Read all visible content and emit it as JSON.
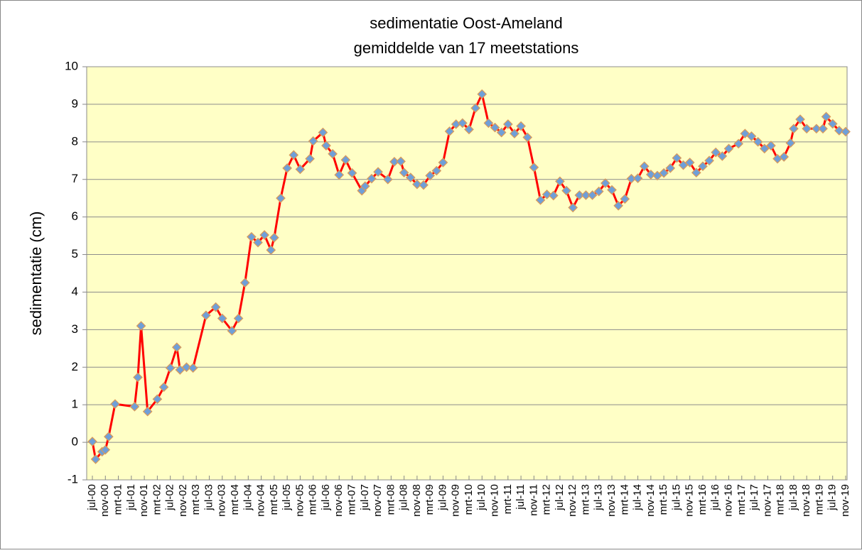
{
  "chart_data": {
    "type": "line",
    "title": "sedimentatie Oost-Ameland",
    "subtitle": "gemiddelde van 17 meetstations",
    "y_label": "sedimentatie (cm)",
    "x": [
      "2000-07",
      "2000-08",
      "2000-10",
      "2000-11",
      "2000-12",
      "2001-02",
      "2001-08",
      "2001-09",
      "2001-10",
      "2001-12",
      "2002-03",
      "2002-05",
      "2002-07",
      "2002-09",
      "2002-10",
      "2002-12",
      "2003-02",
      "2003-06",
      "2003-09",
      "2003-11",
      "2004-02",
      "2004-04",
      "2004-06",
      "2004-08",
      "2004-10",
      "2004-12",
      "2005-02",
      "2005-03",
      "2005-05",
      "2005-07",
      "2005-09",
      "2005-11",
      "2006-02",
      "2006-03",
      "2006-06",
      "2006-07",
      "2006-09",
      "2006-11",
      "2007-01",
      "2007-03",
      "2007-06",
      "2007-07",
      "2007-09",
      "2007-11",
      "2008-02",
      "2008-04",
      "2008-06",
      "2008-07",
      "2008-09",
      "2008-11",
      "2009-01",
      "2009-03",
      "2009-05",
      "2009-07",
      "2009-09",
      "2009-11",
      "2010-01",
      "2010-03",
      "2010-05",
      "2010-07",
      "2010-09",
      "2010-11",
      "2011-01",
      "2011-03",
      "2011-05",
      "2011-07",
      "2011-09",
      "2011-11",
      "2012-01",
      "2012-03",
      "2012-05",
      "2012-07",
      "2012-09",
      "2012-11",
      "2013-01",
      "2013-03",
      "2013-05",
      "2013-07",
      "2013-09",
      "2013-11",
      "2014-01",
      "2014-03",
      "2014-05",
      "2014-07",
      "2014-09",
      "2014-11",
      "2015-01",
      "2015-03",
      "2015-05",
      "2015-07",
      "2015-09",
      "2015-11",
      "2016-01",
      "2016-03",
      "2016-05",
      "2016-07",
      "2016-09",
      "2016-11",
      "2017-02",
      "2017-04",
      "2017-06",
      "2017-08",
      "2017-10",
      "2017-12",
      "2018-02",
      "2018-04",
      "2018-06",
      "2018-07",
      "2018-09",
      "2018-11",
      "2019-02",
      "2019-04",
      "2019-05",
      "2019-07",
      "2019-09",
      "2019-11"
    ],
    "series": [
      {
        "color": "#ff0000",
        "marker_color": "#6f9fd8",
        "values": [
          0.02,
          -0.45,
          -0.25,
          -0.2,
          0.15,
          1.02,
          0.95,
          1.73,
          3.1,
          0.82,
          1.15,
          1.47,
          1.98,
          2.53,
          1.93,
          2.0,
          1.98,
          3.38,
          3.6,
          3.3,
          2.97,
          3.3,
          4.25,
          5.47,
          5.32,
          5.52,
          5.12,
          5.45,
          6.5,
          7.3,
          7.65,
          7.27,
          7.55,
          8.02,
          8.25,
          7.9,
          7.68,
          7.12,
          7.52,
          7.17,
          6.7,
          6.82,
          7.02,
          7.2,
          7.0,
          7.47,
          7.48,
          7.18,
          7.05,
          6.87,
          6.85,
          7.1,
          7.23,
          7.45,
          8.28,
          8.47,
          8.5,
          8.33,
          8.9,
          9.27,
          8.5,
          8.38,
          8.25,
          8.47,
          8.22,
          8.42,
          8.12,
          7.32,
          6.45,
          6.6,
          6.57,
          6.95,
          6.7,
          6.25,
          6.58,
          6.58,
          6.58,
          6.68,
          6.9,
          6.72,
          6.3,
          6.48,
          7.02,
          7.03,
          7.35,
          7.13,
          7.1,
          7.17,
          7.3,
          7.57,
          7.38,
          7.45,
          7.18,
          7.35,
          7.5,
          7.72,
          7.62,
          7.82,
          7.95,
          8.22,
          8.15,
          8.0,
          7.82,
          7.9,
          7.55,
          7.6,
          7.97,
          8.35,
          8.6,
          8.35,
          8.35,
          8.35,
          8.67,
          8.48,
          8.3,
          8.27
        ]
      }
    ],
    "xlim": [
      "2000-07",
      "2019-11"
    ],
    "xticks": [
      {
        "value": "2000-07",
        "label": "jul-00"
      },
      {
        "value": "2000-11",
        "label": "nov-00"
      },
      {
        "value": "2001-03",
        "label": "mrt-01"
      },
      {
        "value": "2001-07",
        "label": "jul-01"
      },
      {
        "value": "2001-11",
        "label": "nov-01"
      },
      {
        "value": "2002-03",
        "label": "mrt-02"
      },
      {
        "value": "2002-07",
        "label": "jul-02"
      },
      {
        "value": "2002-11",
        "label": "nov-02"
      },
      {
        "value": "2003-03",
        "label": "mrt-03"
      },
      {
        "value": "2003-07",
        "label": "jul-03"
      },
      {
        "value": "2003-11",
        "label": "nov-03"
      },
      {
        "value": "2004-03",
        "label": "mrt-04"
      },
      {
        "value": "2004-07",
        "label": "jul-04"
      },
      {
        "value": "2004-11",
        "label": "nov-04"
      },
      {
        "value": "2005-03",
        "label": "mrt-05"
      },
      {
        "value": "2005-07",
        "label": "jul-05"
      },
      {
        "value": "2005-11",
        "label": "nov-05"
      },
      {
        "value": "2006-03",
        "label": "mrt-06"
      },
      {
        "value": "2006-07",
        "label": "jul-06"
      },
      {
        "value": "2006-11",
        "label": "nov-06"
      },
      {
        "value": "2007-03",
        "label": "mrt-07"
      },
      {
        "value": "2007-07",
        "label": "jul-07"
      },
      {
        "value": "2007-11",
        "label": "nov-07"
      },
      {
        "value": "2008-03",
        "label": "mrt-08"
      },
      {
        "value": "2008-07",
        "label": "jul-08"
      },
      {
        "value": "2008-11",
        "label": "nov-08"
      },
      {
        "value": "2009-03",
        "label": "mrt-09"
      },
      {
        "value": "2009-07",
        "label": "jul-09"
      },
      {
        "value": "2009-11",
        "label": "nov-09"
      },
      {
        "value": "2010-03",
        "label": "mrt-10"
      },
      {
        "value": "2010-07",
        "label": "jul-10"
      },
      {
        "value": "2010-11",
        "label": "nov-10"
      },
      {
        "value": "2011-03",
        "label": "mrt-11"
      },
      {
        "value": "2011-07",
        "label": "jul-11"
      },
      {
        "value": "2011-11",
        "label": "nov-11"
      },
      {
        "value": "2012-03",
        "label": "mrt-12"
      },
      {
        "value": "2012-07",
        "label": "jul-12"
      },
      {
        "value": "2012-11",
        "label": "nov-12"
      },
      {
        "value": "2013-03",
        "label": "mrt-13"
      },
      {
        "value": "2013-07",
        "label": "jul-13"
      },
      {
        "value": "2013-11",
        "label": "nov-13"
      },
      {
        "value": "2014-03",
        "label": "mrt-14"
      },
      {
        "value": "2014-07",
        "label": "jul-14"
      },
      {
        "value": "2014-11",
        "label": "nov-14"
      },
      {
        "value": "2015-03",
        "label": "mrt-15"
      },
      {
        "value": "2015-07",
        "label": "jul-15"
      },
      {
        "value": "2015-11",
        "label": "nov-15"
      },
      {
        "value": "2016-03",
        "label": "mrt-16"
      },
      {
        "value": "2016-07",
        "label": "jul-16"
      },
      {
        "value": "2016-11",
        "label": "nov-16"
      },
      {
        "value": "2017-03",
        "label": "mrt-17"
      },
      {
        "value": "2017-07",
        "label": "jul-17"
      },
      {
        "value": "2017-11",
        "label": "nov-17"
      },
      {
        "value": "2018-03",
        "label": "mrt-18"
      },
      {
        "value": "2018-07",
        "label": "jul-18"
      },
      {
        "value": "2018-11",
        "label": "nov-18"
      },
      {
        "value": "2019-03",
        "label": "mrt-19"
      },
      {
        "value": "2019-07",
        "label": "jul-19"
      },
      {
        "value": "2019-11",
        "label": "nov-19"
      }
    ],
    "ylim": [
      -1,
      10
    ],
    "yticks": [
      -1,
      0,
      1,
      2,
      3,
      4,
      5,
      6,
      7,
      8,
      9,
      10
    ],
    "grid": true,
    "plot_background": "#ffffc6"
  }
}
